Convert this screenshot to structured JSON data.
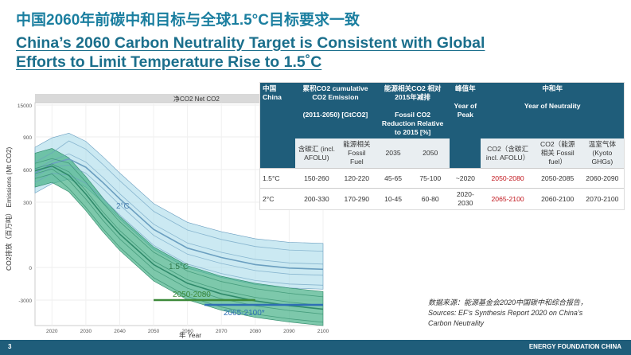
{
  "title_cn": "中国2060年前碳中和目标与全球1.5°C目标要求一致",
  "title_en_line1": "China’s 2060 Carbon Neutrality Target is Consistent with Global",
  "title_en_line2": "Efforts to Limit Temperature Rise to 1.5˚C",
  "chart_data": {
    "type": "area",
    "panel_label": "净CO2   Net CO2",
    "ylabel": "CO2排放（百万吨）\nEmissions (Mt CO2)",
    "xlabel": "年 Year",
    "xlim": [
      2015,
      2100
    ],
    "ylim": [
      -4000,
      15000
    ],
    "x_ticks": [
      "2020",
      "2030",
      "2040",
      "2050",
      "2060",
      "2070",
      "2080",
      "2090",
      "2100"
    ],
    "y_ticks": [
      "15000",
      "900",
      "600",
      "300",
      "0",
      "-3000"
    ],
    "series": [
      {
        "name": "2°C",
        "x": [
          2015,
          2020,
          2025,
          2030,
          2035,
          2040,
          2050,
          2060,
          2070,
          2080,
          2090,
          2100
        ],
        "values": [
          9000,
          9800,
          10200,
          9500,
          8200,
          6800,
          4200,
          2600,
          1800,
          1200,
          900,
          800
        ]
      },
      {
        "name": "1.5°C",
        "x": [
          2015,
          2020,
          2025,
          2030,
          2035,
          2040,
          2050,
          2060,
          2070,
          2080,
          2090,
          2100
        ],
        "values": [
          9200,
          9600,
          8800,
          7200,
          5400,
          3800,
          1200,
          -400,
          -1300,
          -1900,
          -2300,
          -2600
        ]
      }
    ],
    "annotations": [
      {
        "text": "2050-2080",
        "x": [
          2050,
          2080
        ],
        "y": -2000,
        "color": "#3d8a3a"
      },
      {
        "text": "2065-2100*",
        "x": [
          2065,
          2100
        ],
        "y": -3100,
        "color": "#2f6fb5"
      }
    ],
    "colors": {
      "band_2c": "#a9daea",
      "band_15c": "#46b088",
      "line_2c": "#6b9fc0",
      "line_15c": "#2f8a6a"
    }
  },
  "table": {
    "col_headers": {
      "scenario": "中国\nChina",
      "cum": "累积CO2 cumulative CO2 Emission\n\n(2011-2050) [GtCO2]",
      "red": "能源相关CO2 相对2015年减排\n\nFossil CO2 Reduction Relative to 2015 [%]",
      "peak": "峰值年\n\nYear of Peak",
      "neutral": "中和年\n\nYear of Neutrality"
    },
    "sub_headers": [
      "含碳汇 (incl. AFOLU)",
      "能源相关 Fossil Fuel",
      "2035",
      "2050",
      "CO2（含碳汇 incl. AFOLU）",
      "CO2（能源相关 Fossil fuel）",
      "温室气体 (Kyoto GHGs)"
    ],
    "rows": [
      {
        "scenario": "1.5°C",
        "afolu": "150-260",
        "fossil": "120-220",
        "r2035": "45-65",
        "r2050": "75-100",
        "peak": "~2020",
        "n_afolu": "2050-2080",
        "n_fossil": "2050-2085",
        "n_ghg": "2060-2090"
      },
      {
        "scenario": "2°C",
        "afolu": "200-330",
        "fossil": "170-290",
        "r2035": "10-45",
        "r2050": "60-80",
        "peak": "2020-2030",
        "n_afolu": "2065-2100",
        "n_fossil": "2060-2100",
        "n_ghg": "2070-2100"
      }
    ]
  },
  "source_line1": "数据来源：能源基金会2020中国碳中和综合报告，",
  "source_line2": "Sources: EF’s Synthesis Report 2020 on China’s",
  "source_line3": "Carbon Neutrality",
  "footer_page": "3",
  "footer_org": "ENERGY FOUNDATION CHINA"
}
